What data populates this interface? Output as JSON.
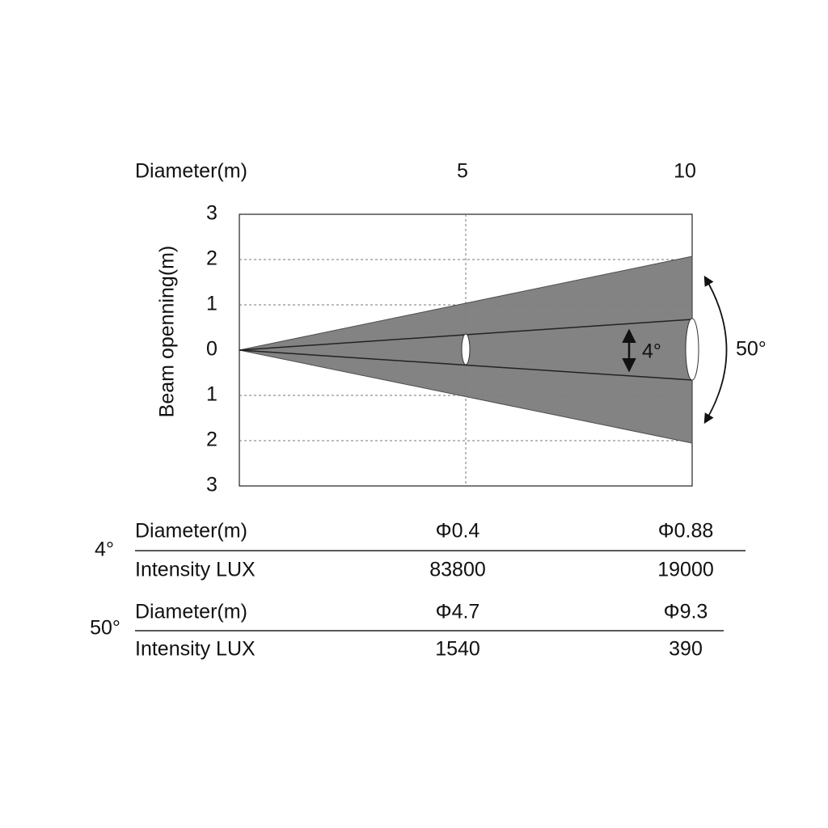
{
  "axes": {
    "x_title": "Diameter(m)",
    "x_labels": [
      "5",
      "10"
    ],
    "y_title": "Beam openning(m)",
    "y_labels": [
      "3",
      "2",
      "1",
      "0",
      "1",
      "2",
      "3"
    ]
  },
  "annotations": {
    "narrow": "4°",
    "wide": "50°"
  },
  "table": {
    "groups": [
      {
        "angle": "4°",
        "rows": [
          [
            "Diameter(m)",
            "Φ0.4",
            "Φ0.88"
          ],
          [
            "Intensity LUX",
            "83800",
            "19000"
          ]
        ]
      },
      {
        "angle": "50°",
        "rows": [
          [
            "Diameter(m)",
            "Φ4.7",
            "Φ9.3"
          ],
          [
            "Intensity LUX",
            "1540",
            "390"
          ]
        ]
      }
    ]
  }
}
